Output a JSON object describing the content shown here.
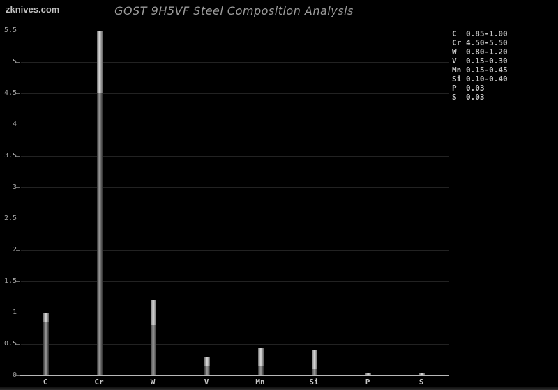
{
  "watermark": "zknives.com",
  "title": "GOST 9H5VF Steel Composition Analysis",
  "chart_data": {
    "type": "bar",
    "title": "GOST 9H5VF Steel Composition Analysis",
    "xlabel": "",
    "ylabel": "",
    "categories": [
      "C",
      "Cr",
      "W",
      "V",
      "Mn",
      "Si",
      "P",
      "S"
    ],
    "series": [
      {
        "symbol": "C",
        "min": 0.85,
        "max": 1.0,
        "range_label": "0.85-1.00"
      },
      {
        "symbol": "Cr",
        "min": 4.5,
        "max": 5.5,
        "range_label": "4.50-5.50"
      },
      {
        "symbol": "W",
        "min": 0.8,
        "max": 1.2,
        "range_label": "0.80-1.20"
      },
      {
        "symbol": "V",
        "min": 0.15,
        "max": 0.3,
        "range_label": "0.15-0.30"
      },
      {
        "symbol": "Mn",
        "min": 0.15,
        "max": 0.45,
        "range_label": "0.15-0.45"
      },
      {
        "symbol": "Si",
        "min": 0.1,
        "max": 0.4,
        "range_label": "0.10-0.40"
      },
      {
        "symbol": "P",
        "min": 0.03,
        "max": 0.03,
        "range_label": "0.03"
      },
      {
        "symbol": "S",
        "min": 0.03,
        "max": 0.03,
        "range_label": "0.03"
      }
    ],
    "y_ticks": [
      "0",
      "0.5",
      "1",
      "1.5",
      "2",
      "2.5",
      "3",
      "3.5",
      "4",
      "4.5",
      "5",
      "5.5"
    ],
    "ylim": [
      0,
      5.5
    ],
    "grid": true,
    "legend_position": "right",
    "colors": {
      "background": "#000000",
      "bar_base": "#8f8f8f",
      "bar_range": "#d8d8d8",
      "gridline": "#222222",
      "text": "#c4c4c4"
    }
  }
}
